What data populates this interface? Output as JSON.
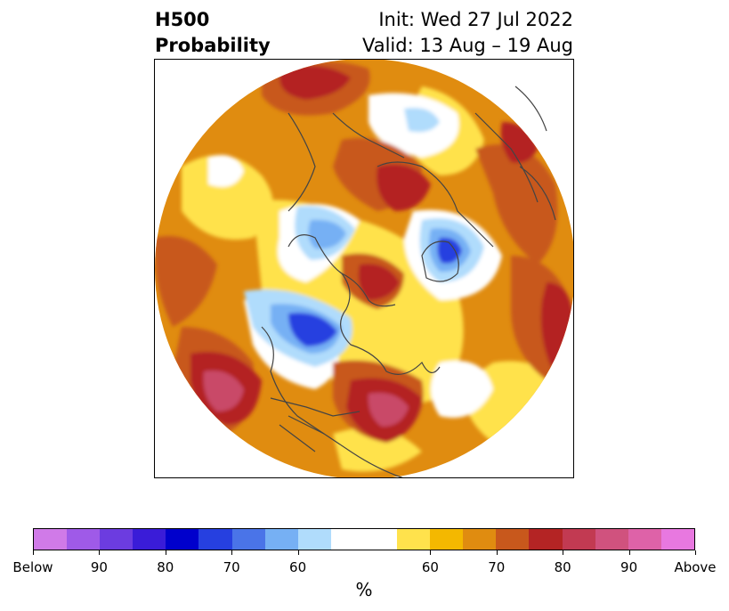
{
  "title": {
    "left": "H500\nProbability",
    "right": "Init: Wed 27 Jul 2022\nValid: 13 Aug – 19 Aug"
  },
  "colorbar": {
    "colors": [
      "#d07ae8",
      "#9f5ae8",
      "#6c3ce0",
      "#3a1cd8",
      "#0000cc",
      "#2640e0",
      "#4a74e8",
      "#76b0f4",
      "#b0dcfc",
      "#ffffff",
      "#ffffff",
      "#ffe24c",
      "#f4b800",
      "#e08c10",
      "#c8581c",
      "#b42424",
      "#c23a52",
      "#d0527e",
      "#de62a8",
      "#e878e0"
    ],
    "tick_labels": [
      "Below",
      "90",
      "80",
      "70",
      "60",
      "60",
      "70",
      "80",
      "90",
      "Above"
    ],
    "unit_label": "%"
  },
  "map": {
    "projection": "north-polar-stereographic",
    "fill_colors": {
      "above_50": "#ffe24c",
      "above_60": "#f4b800",
      "above_65": "#e08c10",
      "above_70": "#c8581c",
      "above_80": "#b42424",
      "above_90": "#c94968",
      "below_60": "#b0dcfc",
      "below_70": "#76b0f4",
      "below_80": "#4a74e8",
      "below_90": "#2640e0",
      "coastline": "#444444"
    }
  }
}
